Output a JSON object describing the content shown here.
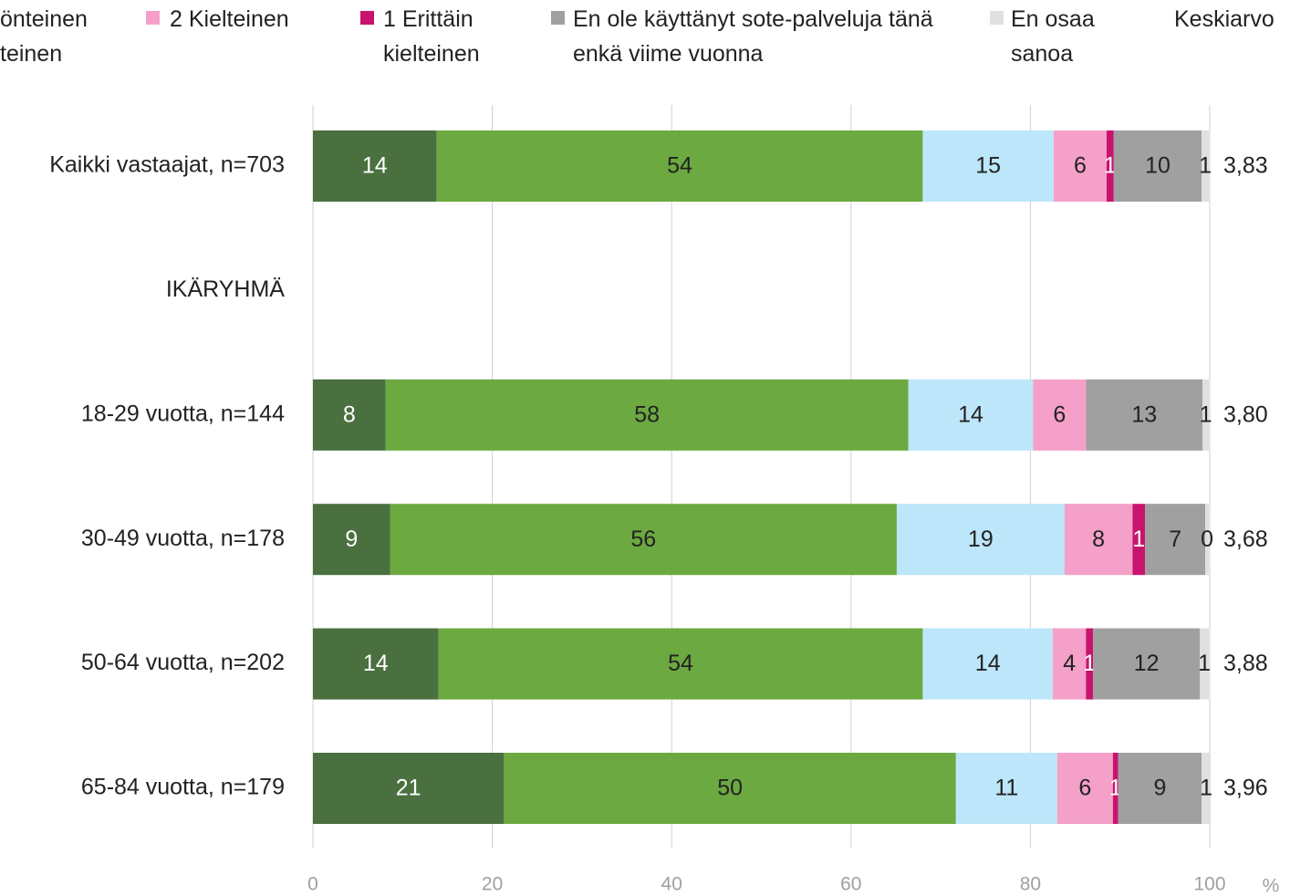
{
  "chart_data": {
    "type": "stacked-bar-horizontal",
    "categories": [
      "Kaikki vastaajat, n=703",
      "IKÄRYHMÄ",
      "18-29 vuotta, n=144",
      "30-49 vuotta, n=178",
      "50-64 vuotta, n=202",
      "65-84 vuotta, n=179"
    ],
    "series": [
      {
        "color": "#4a7040",
        "values": [
          13.8,
          null,
          8.1,
          8.6,
          14.0,
          21.3
        ],
        "value_labels": [
          "14",
          null,
          "8",
          "9",
          "14",
          "21"
        ]
      },
      {
        "color": "#6ca940",
        "values": [
          54.2,
          null,
          58.3,
          56.5,
          54.0,
          50.4
        ],
        "value_labels": [
          "54",
          null,
          "58",
          "56",
          "54",
          "50"
        ]
      },
      {
        "name": "önteinen teinen",
        "color": "#bde6fa",
        "values": [
          14.6,
          null,
          13.9,
          18.7,
          14.5,
          11.3
        ],
        "value_labels": [
          "15",
          null,
          "14",
          "19",
          "14",
          "11"
        ]
      },
      {
        "name": "2 Kielteinen",
        "color": "#f4a0c8",
        "values": [
          5.9,
          null,
          5.9,
          7.6,
          3.7,
          6.2
        ],
        "value_labels": [
          "6",
          null,
          "6",
          "8",
          "4",
          "6"
        ]
      },
      {
        "name": "1 Erittäin kielteinen",
        "color": "#c8146e",
        "values": [
          0.8,
          null,
          0,
          1.4,
          0.8,
          0.6
        ],
        "value_labels": [
          "1",
          null,
          null,
          "1",
          "1",
          "1"
        ]
      },
      {
        "name": "En ole käyttänyt sote-palveluja tänä enkä viime vuonna",
        "color": "#a0a0a0",
        "values": [
          9.8,
          null,
          13.0,
          6.7,
          11.9,
          9.3
        ],
        "value_labels": [
          "10",
          null,
          "13",
          "7",
          "12",
          "9"
        ]
      },
      {
        "name": "En osaa sanoa",
        "color": "#e0e0e0",
        "values": [
          0.8,
          null,
          0.7,
          0.4,
          1.0,
          1.0
        ],
        "value_labels": [
          "1",
          null,
          "1",
          "0",
          "1",
          "1"
        ]
      }
    ],
    "averages": {
      "name": "Keskiarvo",
      "values": [
        3.83,
        null,
        3.8,
        3.68,
        3.88,
        3.96
      ],
      "value_labels": [
        "3,83",
        null,
        "3,80",
        "3,68",
        "3,88",
        "3,96"
      ]
    },
    "xlim": [
      0,
      100
    ],
    "xticks": [
      0,
      20,
      40,
      60,
      80,
      100
    ],
    "xlabel": "%",
    "grid": true
  }
}
